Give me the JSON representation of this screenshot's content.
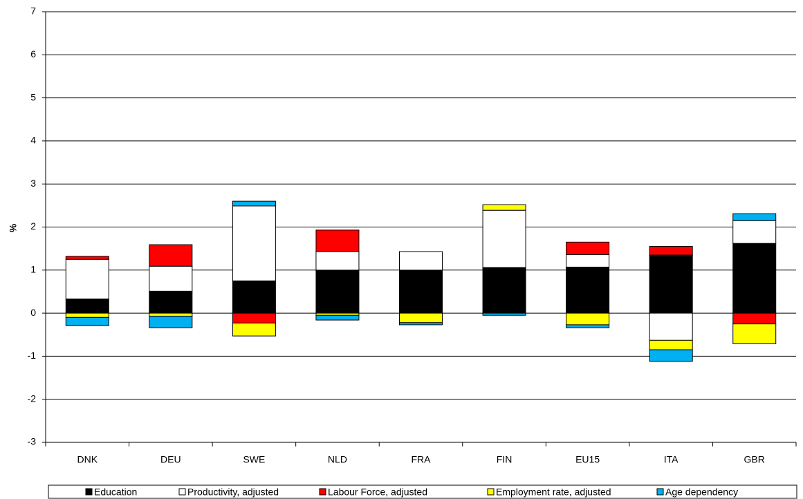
{
  "chart_data": {
    "type": "stacked_bar",
    "y_label": "%",
    "categories": [
      "DNK",
      "DEU",
      "SWE",
      "NLD",
      "FRA",
      "FIN",
      "EU15",
      "ITA",
      "GBR"
    ],
    "series": [
      {
        "name": "Education",
        "color": "#000000",
        "values": [
          0.33,
          0.51,
          0.75,
          1.0,
          1.0,
          1.06,
          1.07,
          1.35,
          1.62
        ]
      },
      {
        "name": "Productivity, adjusted",
        "color": "#ffffff",
        "values": [
          0.92,
          0.58,
          1.74,
          0.43,
          0.43,
          1.33,
          0.29,
          -0.63,
          0.53
        ]
      },
      {
        "name": "Labour Force, adjusted",
        "color": "#ff0000",
        "values": [
          0.07,
          0.5,
          -0.23,
          0.5,
          0,
          0,
          0.29,
          0.2,
          -0.25
        ]
      },
      {
        "name": "Employment rate, adjusted",
        "color": "#ffff00",
        "values": [
          -0.1,
          -0.07,
          -0.3,
          -0.05,
          -0.22,
          0.13,
          -0.27,
          -0.22,
          -0.46
        ]
      },
      {
        "name": "Age dependency",
        "color": "#00b0f0",
        "values": [
          -0.19,
          -0.27,
          0.11,
          -0.11,
          -0.05,
          -0.05,
          -0.07,
          -0.27,
          0.16
        ]
      }
    ],
    "ylim": [
      -3,
      7
    ],
    "yticks": [
      -3,
      -2,
      -1,
      0,
      1,
      2,
      3,
      4,
      5,
      6,
      7
    ],
    "grid": true,
    "legend": "bottom"
  }
}
